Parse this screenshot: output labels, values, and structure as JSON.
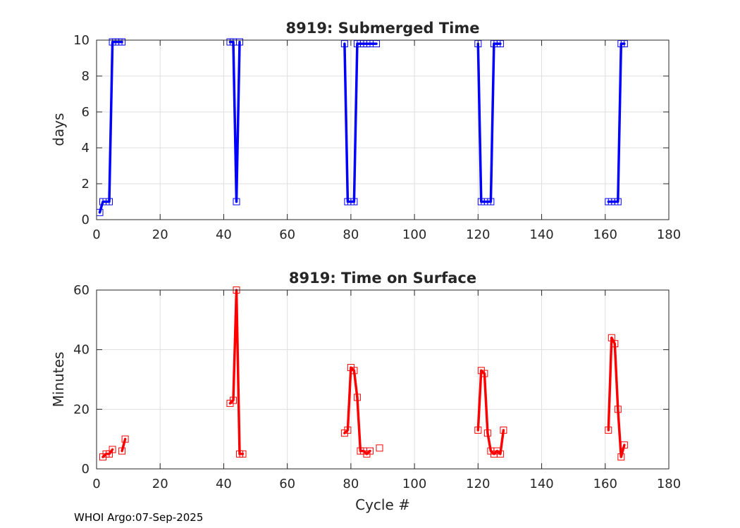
{
  "footer": "WHOI Argo:07-Sep-2025",
  "chart_data": [
    {
      "type": "line",
      "title": "8919: Submerged Time",
      "xlabel": "",
      "ylabel": "days",
      "xlim": [
        0,
        180
      ],
      "ylim": [
        0,
        10
      ],
      "xticks": [
        0,
        20,
        40,
        60,
        80,
        100,
        120,
        140,
        160,
        180
      ],
      "yticks": [
        0,
        2,
        4,
        6,
        8,
        10
      ],
      "grid": true,
      "color": "#0000ff",
      "marker": "square",
      "series": [
        {
          "name": "submerged-1",
          "x": [
            1,
            2,
            3,
            4,
            5,
            6,
            7,
            8
          ],
          "y": [
            0.4,
            1.0,
            1.0,
            1.0,
            9.9,
            9.9,
            9.9,
            9.9
          ]
        },
        {
          "name": "submerged-2",
          "x": [
            42,
            43,
            44,
            45
          ],
          "y": [
            9.9,
            9.9,
            1.0,
            9.9
          ]
        },
        {
          "name": "submerged-3",
          "x": [
            78,
            79,
            80,
            81,
            82,
            83,
            84,
            85,
            86,
            88
          ],
          "y": [
            9.8,
            1.0,
            1.0,
            1.0,
            9.8,
            9.8,
            9.8,
            9.8,
            9.8,
            9.8
          ]
        },
        {
          "name": "submerged-4",
          "x": [
            120,
            121,
            122,
            123,
            124,
            125,
            126,
            127
          ],
          "y": [
            9.8,
            1.0,
            1.0,
            1.0,
            1.0,
            9.8,
            9.8,
            9.8
          ]
        },
        {
          "name": "submerged-5",
          "x": [
            161,
            162,
            163,
            164,
            165,
            166
          ],
          "y": [
            1.0,
            1.0,
            1.0,
            1.0,
            9.8,
            9.8
          ]
        }
      ]
    },
    {
      "type": "line",
      "title": "8919: Time on Surface",
      "xlabel": "Cycle #",
      "ylabel": "Minutes",
      "xlim": [
        0,
        180
      ],
      "ylim": [
        0,
        60
      ],
      "xticks": [
        0,
        20,
        40,
        60,
        80,
        100,
        120,
        140,
        160,
        180
      ],
      "yticks": [
        0,
        20,
        40,
        60
      ],
      "grid": true,
      "color": "#ff0000",
      "marker": "square",
      "series": [
        {
          "name": "surface-1",
          "x": [
            2,
            3,
            4,
            5
          ],
          "y": [
            4,
            5,
            5,
            6.5
          ]
        },
        {
          "name": "surface-2",
          "x": [
            8,
            9
          ],
          "y": [
            6,
            10
          ]
        },
        {
          "name": "surface-3",
          "x": [
            42,
            43,
            44,
            45,
            46
          ],
          "y": [
            22,
            23,
            60,
            5,
            5
          ]
        },
        {
          "name": "surface-4",
          "x": [
            78,
            79,
            80,
            81,
            82,
            83,
            84,
            85,
            86
          ],
          "y": [
            12,
            13,
            34,
            33,
            24,
            6,
            6,
            5,
            6
          ]
        },
        {
          "name": "surface-5",
          "x": [
            120,
            121,
            122,
            123,
            124,
            125,
            126,
            127,
            128
          ],
          "y": [
            13,
            33,
            32,
            12,
            6,
            5,
            6,
            5,
            13
          ]
        },
        {
          "name": "surface-6",
          "x": [
            161,
            162,
            163,
            164,
            165,
            166
          ],
          "y": [
            13,
            44,
            42,
            20,
            4,
            8
          ]
        }
      ],
      "isolated": [
        {
          "x": 89,
          "y": 7
        }
      ]
    }
  ]
}
